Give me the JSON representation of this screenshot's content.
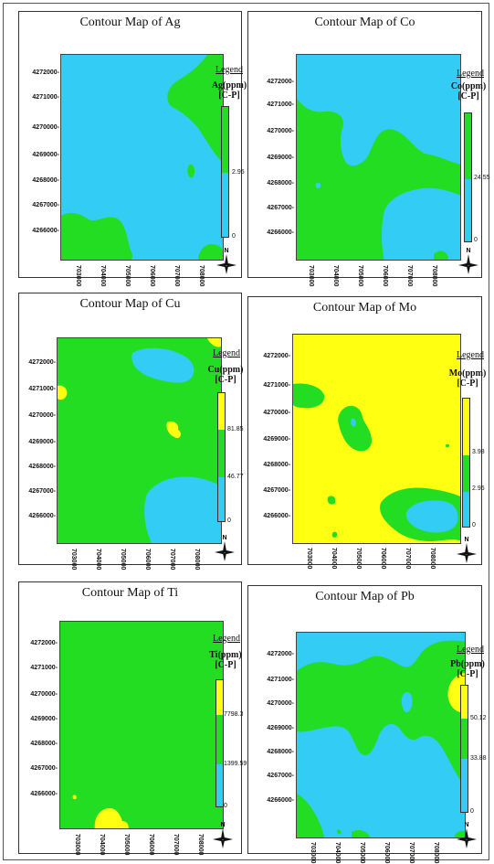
{
  "colors": {
    "low": "#33ccf5",
    "mid": "#22dd22",
    "high": "#ffff11"
  },
  "icons": {
    "north_arrow": "north-arrow-icon"
  },
  "maps": [
    {
      "title": "Contour Map of Ag",
      "legend_heading": "Legend",
      "legend_unit": "Ag(ppm)",
      "legend_sub": "[C-P]",
      "legend_values": [
        "2.95",
        "0"
      ],
      "north_label": "N",
      "y_ticks": [
        "4272000-",
        "4271000-",
        "4270000-",
        "4269000-",
        "4268000-",
        "4267000-",
        "4266000-"
      ],
      "x_ticks": [
        "703000",
        "704000",
        "705000",
        "706000",
        "707000",
        "708000"
      ]
    },
    {
      "title": "Contour Map of Co",
      "legend_heading": "Legend",
      "legend_unit": "Co(ppm)",
      "legend_sub": "[C-P]",
      "legend_values": [
        "24.55",
        "0"
      ],
      "north_label": "N",
      "y_ticks": [
        "4272000-",
        "4271000-",
        "4270000-",
        "4269000-",
        "4268000-",
        "4267000-",
        "4266000-"
      ],
      "x_ticks": [
        "703000",
        "704000",
        "705000",
        "706000",
        "707000",
        "708000"
      ]
    },
    {
      "title": "Contour Map of Cu",
      "legend_heading": "Legend",
      "legend_unit": "Cu(ppm)",
      "legend_sub": "[C-P]",
      "legend_values": [
        "81.85",
        "46.77",
        "0"
      ],
      "north_label": "N",
      "y_ticks": [
        "4272000-",
        "4271000-",
        "4270000-",
        "4269000-",
        "4268000-",
        "4267000-",
        "4266000-"
      ],
      "x_ticks": [
        "703000",
        "704000",
        "705000",
        "706000",
        "707000",
        "708000"
      ]
    },
    {
      "title": "Contour Map of Mo",
      "legend_heading": "Legend",
      "legend_unit": "Mo(ppm)",
      "legend_sub": "[C-P]",
      "legend_values": [
        "3.98",
        "2.95",
        "0"
      ],
      "north_label": "N",
      "y_ticks": [
        "4272000-",
        "4271000-",
        "4270000-",
        "4269000-",
        "4268000-",
        "4267000-",
        "4266000-"
      ],
      "x_ticks": [
        "703000",
        "704000",
        "705000",
        "706000",
        "707000",
        "708000"
      ]
    },
    {
      "title": "Contour Map of Ti",
      "legend_heading": "Legend",
      "legend_unit": "Ti(ppm)",
      "legend_sub": "[C-P]",
      "legend_values": [
        "7798.3",
        "1399.59",
        "0"
      ],
      "north_label": "N",
      "y_ticks": [
        "4272000-",
        "4271000-",
        "4270000-",
        "4269000-",
        "4268000-",
        "4267000-",
        "4266000-"
      ],
      "x_ticks": [
        "703000",
        "704000",
        "705000",
        "706000",
        "707000",
        "708000"
      ]
    },
    {
      "title": "Contour Map of Pb",
      "legend_heading": "Legend",
      "legend_unit": "Pb(ppm)",
      "legend_sub": "[C-P]",
      "legend_values": [
        "50.12",
        "33.88",
        "0"
      ],
      "north_label": "N",
      "y_ticks": [
        "4272000-",
        "4271000-",
        "4270000-",
        "4269000-",
        "4268000-",
        "4267000-",
        "4266000-"
      ],
      "x_ticks": [
        "703000",
        "704000",
        "705000",
        "706000",
        "707000",
        "708000"
      ]
    }
  ]
}
